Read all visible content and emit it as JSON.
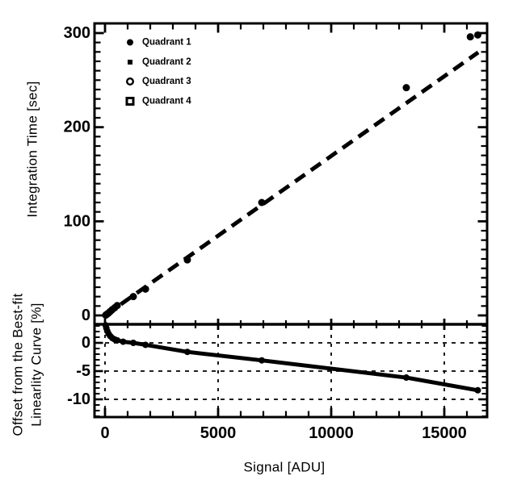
{
  "chart_data": [
    {
      "id": "integration-time-vs-signal",
      "type": "scatter",
      "panel": "top",
      "ylabel": "Integration Time [sec]",
      "ylim": [
        -9.4,
        309.4
      ],
      "ytick_values": [
        0,
        100,
        200,
        300
      ],
      "ytick_labels": [
        "0",
        "100",
        "200",
        "300"
      ],
      "legend": [
        {
          "label": "Quadrant 1",
          "marker": "filled-circle"
        },
        {
          "label": "Quadrant 2",
          "marker": "filled-square"
        },
        {
          "label": "Quadrant 3",
          "marker": "open-circle"
        },
        {
          "label": "Quadrant 4",
          "marker": "open-square"
        }
      ],
      "fit_line": {
        "style": "dashed",
        "x1": 0,
        "y1": 0,
        "x2": 16500,
        "y2": 279.5
      },
      "points": [
        [
          30,
          0.3
        ],
        [
          60,
          0.9
        ],
        [
          100,
          1.6
        ],
        [
          160,
          2.6
        ],
        [
          230,
          4.2
        ],
        [
          320,
          6.2
        ],
        [
          430,
          8.2
        ],
        [
          540,
          10.5
        ],
        [
          1250,
          20
        ],
        [
          1790,
          28
        ],
        [
          3640,
          59
        ],
        [
          6930,
          120
        ],
        [
          13320,
          242
        ],
        [
          16150,
          296
        ],
        [
          16480,
          298
        ]
      ]
    },
    {
      "id": "offset-from-best-fit",
      "type": "line",
      "panel": "bottom",
      "ylabel_lines": [
        "Offset from the Best-fit",
        "Linearlity Curve [%]"
      ],
      "ylim": [
        -13.1,
        3.3
      ],
      "ytick_values": [
        0,
        -5,
        -10
      ],
      "ytick_labels": [
        "0",
        "-5",
        "-10"
      ],
      "grid": {
        "h": [
          0,
          -5,
          -10
        ],
        "v": [
          0,
          5000,
          10000,
          15000
        ]
      },
      "points": [
        [
          30,
          3.1
        ],
        [
          60,
          2.6
        ],
        [
          100,
          2.1
        ],
        [
          160,
          1.6
        ],
        [
          230,
          1.2
        ],
        [
          320,
          0.85
        ],
        [
          430,
          0.6
        ],
        [
          540,
          0.45
        ],
        [
          800,
          0.2
        ],
        [
          1250,
          0
        ],
        [
          1790,
          -0.35
        ],
        [
          3640,
          -1.6
        ],
        [
          6930,
          -3.1
        ],
        [
          13320,
          -6.15
        ],
        [
          16480,
          -8.4
        ]
      ]
    }
  ],
  "x_axis": {
    "label": "Signal [ADU]",
    "xlim": [
      -500,
      17000
    ],
    "xtick_values": [
      0,
      5000,
      10000,
      15000
    ],
    "xtick_labels": [
      "0",
      "5000",
      "10000",
      "15000"
    ],
    "minor_step": 1000
  },
  "colors": {
    "ink": "#000000",
    "background": "#ffffff"
  }
}
